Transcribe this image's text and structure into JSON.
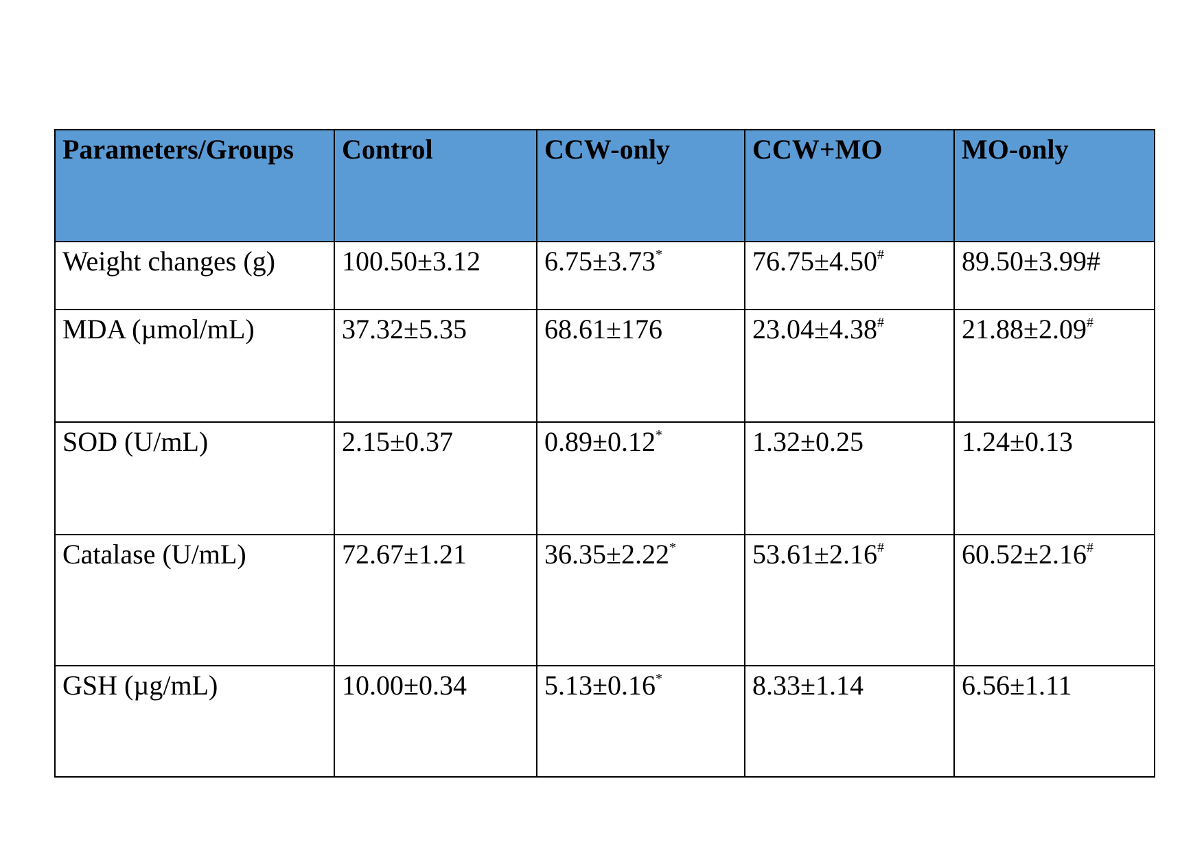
{
  "table": {
    "header": [
      "Parameters/Groups",
      "Control",
      "CCW-only",
      "CCW+MO",
      "MO-only"
    ],
    "rows": [
      [
        "Weight changes (g)",
        "100.50±3.12",
        {
          "text": "6.75±3.73",
          "sup": "*"
        },
        {
          "text": "76.75±4.50",
          "sup": "#"
        },
        "89.50±3.99#"
      ],
      [
        "MDA (µmol/mL)",
        "37.32±5.35",
        "68.61±176",
        {
          "text": "23.04±4.38",
          "sup": "#"
        },
        {
          "text": "21.88±2.09",
          "sup": "#"
        }
      ],
      [
        "SOD (U/mL)",
        "2.15±0.37",
        {
          "text": "0.89±0.12",
          "sup": "*"
        },
        "1.32±0.25",
        "1.24±0.13"
      ],
      [
        "Catalase (U/mL)",
        "72.67±1.21",
        {
          "text": "36.35±2.22",
          "sup": "*"
        },
        {
          "text": "53.61±2.16",
          "sup": "#"
        },
        {
          "text": "60.52±2.16",
          "sup": "#"
        }
      ],
      [
        "GSH (µg/mL)",
        "10.00±0.34",
        {
          "text": "5.13±0.16",
          "sup": "*"
        },
        "8.33±1.14",
        "6.56±1.11"
      ]
    ]
  }
}
